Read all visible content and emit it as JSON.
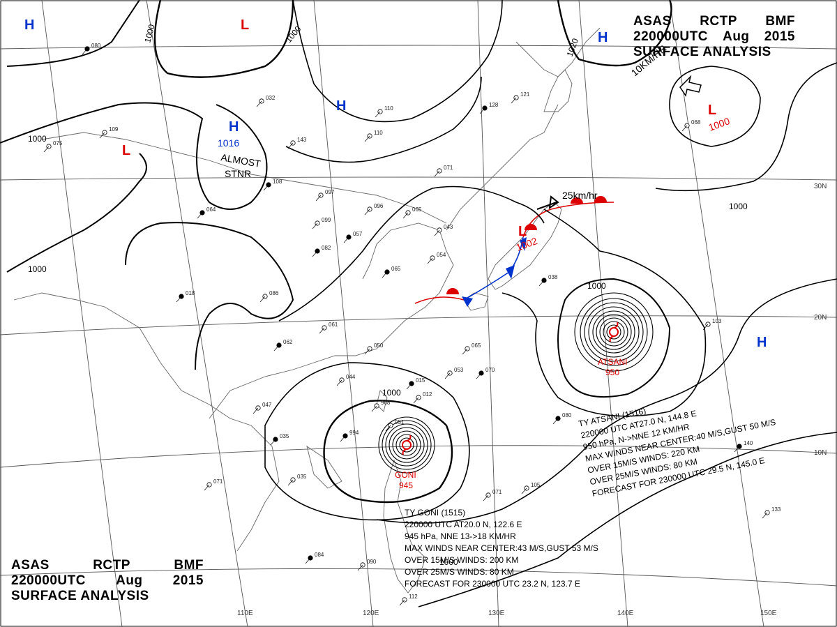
{
  "header": {
    "line1": [
      "ASAS",
      "RCTP",
      "BMF"
    ],
    "line2": [
      "220000UTC",
      "Aug",
      "2015"
    ],
    "line3": "SURFACE  ANALYSIS"
  },
  "latitudes": [
    "30N",
    "20N",
    "10N"
  ],
  "longitudes": [
    "110E",
    "120E",
    "130E",
    "140E",
    "150E"
  ],
  "isobar_labels": [
    "1000",
    "1000",
    "1000",
    "1000",
    "1000",
    "1000",
    "1020",
    "1000",
    "1000"
  ],
  "pressure_systems": [
    {
      "type": "H",
      "value": "",
      "note": "",
      "color": "#0033cc"
    },
    {
      "type": "L",
      "value": "",
      "note": "",
      "color": "#dd0000"
    },
    {
      "type": "H",
      "value": "",
      "note": "",
      "color": "#0033cc"
    },
    {
      "type": "H",
      "value": "1016",
      "note": "ALMOST\nSTNR",
      "color": "#0033cc"
    },
    {
      "type": "L",
      "value": "",
      "note": "",
      "color": "#dd0000"
    },
    {
      "type": "H",
      "value": "",
      "note": "",
      "color": "#0033cc"
    },
    {
      "type": "L",
      "value": "1000",
      "note": "",
      "color": "#dd0000"
    },
    {
      "type": "L",
      "value": "1002",
      "note": "",
      "color": "#dd0000"
    },
    {
      "type": "H",
      "value": "",
      "note": "",
      "color": "#0033cc"
    }
  ],
  "motion_labels": [
    "10KM/HR",
    "25km/hr"
  ],
  "typhoons": [
    {
      "id": "goni",
      "name": "GONI",
      "pressure": "945",
      "lines": [
        "TY  GONI  (1515)",
        "220000  UTC  AT20.0 N, 122.6 E",
        "945 hPa, NNE  13->18 KM/HR",
        "MAX WINDS NEAR CENTER:43 M/S,GUST 53 M/S",
        "OVER  15M/S WINDS: 200 KM",
        "OVER  25M/S WINDS:  80 KM",
        "FORECAST FOR 230000 UTC 23.2 N, 123.7 E"
      ]
    },
    {
      "id": "atsani",
      "name": "ATSANI",
      "pressure": "950",
      "lines": [
        "TY  ATSANI  (1516)",
        "220000  UTC  AT27.0 N, 144.8 E",
        "950 hPa, N->NNE  12 KM/HR",
        "MAX WINDS NEAR CENTER:40 M/S,GUST 50 M/S",
        "OVER 15M/S WINDS: 220 KM",
        "OVER 25M/S WINDS: 80 KM",
        "FORECAST FOR 230000 UTC 29.5 N, 145.0 E"
      ]
    }
  ],
  "station_values": [
    "080",
    "075",
    "109",
    "064",
    "097",
    "099",
    "082",
    "086",
    "061",
    "062",
    "096",
    "065",
    "057",
    "043",
    "054",
    "065",
    "050",
    "065",
    "070",
    "053",
    "044",
    "015",
    "012",
    "968",
    "994",
    "951",
    "047",
    "035",
    "035",
    "071",
    "084",
    "090",
    "112",
    "128",
    "110",
    "121",
    "038",
    "068",
    "071",
    "080",
    "105",
    "133",
    "140",
    "103",
    "143",
    "108",
    "110",
    "071",
    "018",
    "032"
  ],
  "colors": {
    "high": "#0033cc",
    "low": "#dd0000",
    "isobar": "#000000",
    "coast": "#555555",
    "grid": "#444444"
  }
}
